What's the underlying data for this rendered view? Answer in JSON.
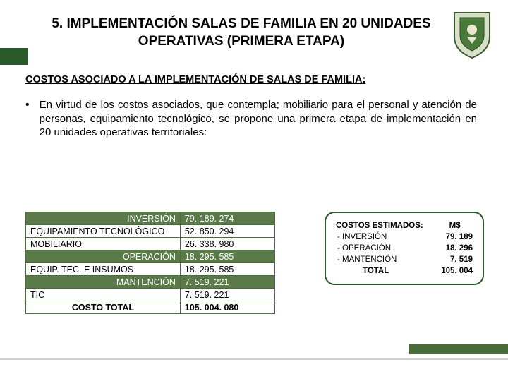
{
  "title_line": "5. IMPLEMENTACIÓN SALAS DE FAMILIA EN 20 UNIDADES OPERATIVAS (PRIMERA ETAPA)",
  "subheader": "COSTOS ASOCIADO  A LA IMPLEMENTACIÓN DE SALAS DE FAMILIA:",
  "bullet": "•",
  "body": "En virtud de los costos asociados, que contempla; mobiliario para el personal y atención de personas, equipamiento tecnológico,  se propone una primera etapa de implementación en 20 unidades operativas territoriales:",
  "cost_table": {
    "sections": [
      {
        "label": "INVERSIÓN",
        "value": "79. 189. 274",
        "items": [
          {
            "label": "EQUIPAMIENTO TECNOLÓGICO",
            "value": "52. 850. 294"
          },
          {
            "label": "MOBILIARIO",
            "value": "26. 338. 980"
          }
        ]
      },
      {
        "label": "OPERACIÓN",
        "value": "18. 295. 585",
        "items": [
          {
            "label": "EQUIP. TEC. E INSUMOS",
            "value": "18. 295. 585"
          }
        ]
      },
      {
        "label": "MANTENCIÓN",
        "value": "7. 519. 221",
        "items": [
          {
            "label": "TIC",
            "value": "7. 519. 221"
          }
        ]
      }
    ],
    "total_label": "COSTO TOTAL",
    "total_value": "105. 004. 080"
  },
  "summary": {
    "header_left": "COSTOS ESTIMADOS:",
    "header_right": "M$",
    "rows": [
      {
        "label": "-  INVERSIÓN",
        "value": "79. 189"
      },
      {
        "label": "-  OPERACIÓN",
        "value": "18. 296"
      },
      {
        "label": "-  MANTENCIÓN",
        "value": "7. 519"
      }
    ],
    "total_label": "TOTAL",
    "total_value": "105. 004"
  },
  "colors": {
    "section_bg": "#5a7a4a",
    "border": "#4a6b3b",
    "accent_dark": "#2a5a2a"
  },
  "logo": {
    "alt": "Carabineros de Chile shield",
    "shield_fill": "#d8e0c8",
    "shield_stroke": "#3b5a2e",
    "inner_fill": "#4a7a3a"
  }
}
